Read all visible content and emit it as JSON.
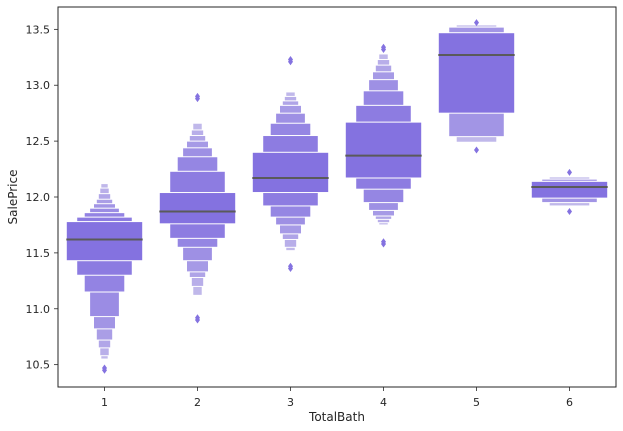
{
  "chart_data": {
    "type": "boxen",
    "xlabel": "TotalBath",
    "ylabel": "SalePrice",
    "categories": [
      "1",
      "2",
      "3",
      "4",
      "5",
      "6"
    ],
    "ylim": [
      10.3,
      13.7
    ],
    "yticks": [
      10.5,
      11.0,
      11.5,
      12.0,
      12.5,
      13.0,
      13.5
    ],
    "grid": false,
    "color": "#8472e0",
    "median_color": "#5a5a5a",
    "groups": [
      {
        "category": "1",
        "median": 11.62,
        "boxes": [
          {
            "low": 11.43,
            "high": 11.78
          },
          {
            "low": 11.3,
            "high": 11.82
          },
          {
            "low": 11.15,
            "high": 11.86
          },
          {
            "low": 10.93,
            "high": 11.9
          },
          {
            "low": 10.82,
            "high": 11.94
          },
          {
            "low": 10.72,
            "high": 11.98
          },
          {
            "low": 10.65,
            "high": 12.03
          },
          {
            "low": 10.58,
            "high": 12.08
          },
          {
            "low": 10.55,
            "high": 12.12
          }
        ],
        "outliers": [
          10.47,
          10.45
        ]
      },
      {
        "category": "2",
        "median": 11.87,
        "boxes": [
          {
            "low": 11.76,
            "high": 12.04
          },
          {
            "low": 11.63,
            "high": 12.23
          },
          {
            "low": 11.55,
            "high": 12.36
          },
          {
            "low": 11.43,
            "high": 12.44
          },
          {
            "low": 11.33,
            "high": 12.5
          },
          {
            "low": 11.28,
            "high": 12.55
          },
          {
            "low": 11.2,
            "high": 12.6
          },
          {
            "low": 11.12,
            "high": 12.66
          }
        ],
        "outliers": [
          10.92,
          10.9,
          12.88,
          12.9
        ]
      },
      {
        "category": "3",
        "median": 12.17,
        "boxes": [
          {
            "low": 12.04,
            "high": 12.4
          },
          {
            "low": 11.92,
            "high": 12.55
          },
          {
            "low": 11.82,
            "high": 12.66
          },
          {
            "low": 11.75,
            "high": 12.75
          },
          {
            "low": 11.67,
            "high": 12.82
          },
          {
            "low": 11.62,
            "high": 12.86
          },
          {
            "low": 11.55,
            "high": 12.9
          },
          {
            "low": 11.52,
            "high": 12.94
          }
        ],
        "outliers": [
          11.38,
          11.36,
          13.21,
          13.23
        ]
      },
      {
        "category": "4",
        "median": 12.37,
        "boxes": [
          {
            "low": 12.17,
            "high": 12.67
          },
          {
            "low": 12.07,
            "high": 12.82
          },
          {
            "low": 11.95,
            "high": 12.95
          },
          {
            "low": 11.88,
            "high": 13.05
          },
          {
            "low": 11.83,
            "high": 13.12
          },
          {
            "low": 11.8,
            "high": 13.18
          },
          {
            "low": 11.77,
            "high": 13.23
          },
          {
            "low": 11.75,
            "high": 13.28
          }
        ],
        "outliers": [
          11.58,
          11.6,
          13.32,
          13.34
        ]
      },
      {
        "category": "5",
        "median": 13.27,
        "boxes": [
          {
            "low": 12.75,
            "high": 13.47
          },
          {
            "low": 12.54,
            "high": 13.52
          },
          {
            "low": 12.49,
            "high": 13.54
          }
        ],
        "outliers": [
          12.42,
          13.56
        ]
      },
      {
        "category": "6",
        "median": 12.09,
        "boxes": [
          {
            "low": 11.99,
            "high": 12.14
          },
          {
            "low": 11.95,
            "high": 12.16
          },
          {
            "low": 11.92,
            "high": 12.18
          }
        ],
        "outliers": [
          11.87,
          12.22
        ]
      }
    ]
  }
}
